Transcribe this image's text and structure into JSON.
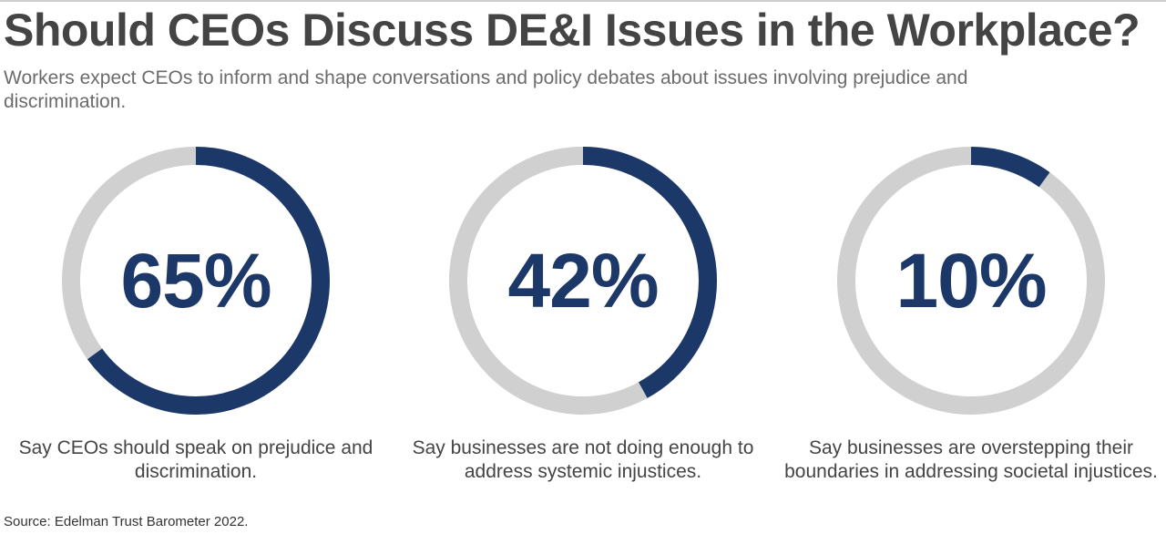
{
  "title": "Should CEOs Discuss DE&I Issues in the Workplace?",
  "subtitle": "Workers expect CEOs to inform and shape conversations and policy debates about issues involving prejudice and discrimination.",
  "source": "Source: Edelman Trust Barometer 2022.",
  "colors": {
    "filled": "#1c3868",
    "track": "#d0d0d0",
    "title": "#444444",
    "subtitle": "#6b6b6b"
  },
  "chart_data": [
    {
      "type": "pie",
      "value": 65,
      "label": "65%",
      "caption": "Say CEOs should speak on prejudice and discrimination."
    },
    {
      "type": "pie",
      "value": 42,
      "label": "42%",
      "caption": "Say businesses are not doing enough to address systemic injustices."
    },
    {
      "type": "pie",
      "value": 10,
      "label": "10%",
      "caption": "Say businesses are overstepping their boundaries in addressing societal injustices."
    }
  ]
}
